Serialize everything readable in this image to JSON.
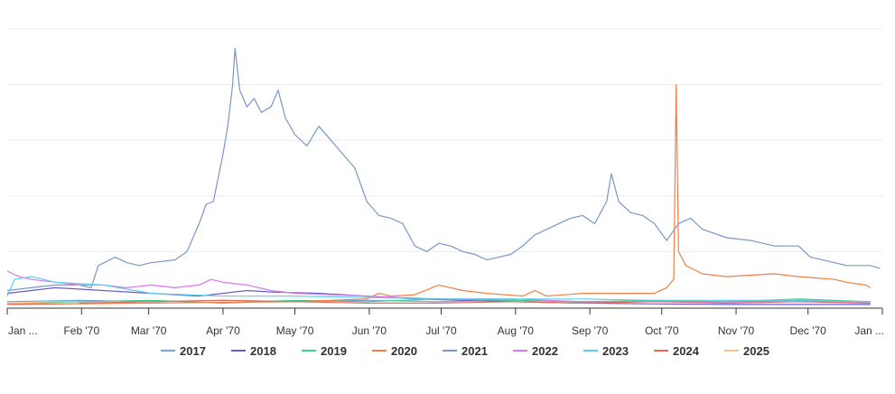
{
  "chart_data": {
    "type": "line",
    "title": "",
    "xlabel": "",
    "ylabel": "",
    "x_ticks": [
      "Jan ...",
      "Feb '70",
      "Mar '70",
      "Apr '70",
      "May '70",
      "Jun '70",
      "Jul '70",
      "Aug '70",
      "Sep '70",
      "Oct '70",
      "Nov '70",
      "Dec '70",
      "Jan ..."
    ],
    "x_tick_days": [
      0,
      31,
      59,
      90,
      120,
      151,
      181,
      212,
      243,
      273,
      304,
      334,
      365
    ],
    "xlim": [
      0,
      365
    ],
    "ylim": [
      0,
      100
    ],
    "grid_y": [
      0,
      20,
      40,
      60,
      80,
      100
    ],
    "legend_position": "bottom",
    "series": [
      {
        "name": "2017",
        "color": "#6fa8dc",
        "points": [
          [
            0,
            2
          ],
          [
            30,
            2.5
          ],
          [
            60,
            2
          ],
          [
            90,
            2.5
          ],
          [
            120,
            2
          ],
          [
            150,
            2.5
          ],
          [
            180,
            2
          ],
          [
            210,
            2.5
          ],
          [
            240,
            2
          ],
          [
            270,
            2
          ],
          [
            300,
            2
          ],
          [
            330,
            2.5
          ],
          [
            360,
            2
          ]
        ]
      },
      {
        "name": "2018",
        "color": "#6a5acd",
        "points": [
          [
            0,
            5
          ],
          [
            20,
            7
          ],
          [
            40,
            6
          ],
          [
            60,
            5
          ],
          [
            80,
            4
          ],
          [
            100,
            6
          ],
          [
            110,
            5.5
          ],
          [
            130,
            5
          ],
          [
            150,
            4
          ],
          [
            170,
            3
          ],
          [
            190,
            2.5
          ],
          [
            210,
            2
          ],
          [
            240,
            1.5
          ],
          [
            270,
            1.2
          ],
          [
            300,
            1
          ],
          [
            330,
            1
          ],
          [
            360,
            1
          ]
        ]
      },
      {
        "name": "2019",
        "color": "#3ecf8e",
        "points": [
          [
            0,
            1.5
          ],
          [
            30,
            2
          ],
          [
            60,
            2.5
          ],
          [
            90,
            1.5
          ],
          [
            120,
            2.5
          ],
          [
            150,
            2
          ],
          [
            180,
            3
          ],
          [
            210,
            2.5
          ],
          [
            240,
            2
          ],
          [
            270,
            2.5
          ],
          [
            300,
            2
          ],
          [
            330,
            3
          ],
          [
            360,
            2
          ]
        ]
      },
      {
        "name": "2020",
        "color": "#f07f46",
        "points": [
          [
            0,
            1
          ],
          [
            60,
            1.5
          ],
          [
            120,
            2
          ],
          [
            150,
            3
          ],
          [
            155,
            5
          ],
          [
            160,
            4
          ],
          [
            170,
            4.5
          ],
          [
            180,
            8
          ],
          [
            185,
            7
          ],
          [
            190,
            6
          ],
          [
            200,
            5
          ],
          [
            215,
            4
          ],
          [
            220,
            6
          ],
          [
            225,
            4
          ],
          [
            240,
            5
          ],
          [
            260,
            5
          ],
          [
            270,
            5
          ],
          [
            275,
            7
          ],
          [
            278,
            10
          ],
          [
            279,
            80
          ],
          [
            280,
            20
          ],
          [
            283,
            15
          ],
          [
            290,
            12
          ],
          [
            300,
            11
          ],
          [
            320,
            12
          ],
          [
            330,
            11
          ],
          [
            345,
            10
          ],
          [
            350,
            9
          ],
          [
            358,
            8
          ],
          [
            360,
            7
          ]
        ]
      },
      {
        "name": "2021",
        "color": "#7b97c6",
        "points": [
          [
            0,
            6
          ],
          [
            10,
            7
          ],
          [
            20,
            8
          ],
          [
            30,
            8
          ],
          [
            35,
            7
          ],
          [
            38,
            15
          ],
          [
            45,
            18
          ],
          [
            50,
            16
          ],
          [
            55,
            15
          ],
          [
            60,
            16
          ],
          [
            70,
            17
          ],
          [
            75,
            20
          ],
          [
            80,
            30
          ],
          [
            83,
            37
          ],
          [
            86,
            38
          ],
          [
            90,
            55
          ],
          [
            92,
            65
          ],
          [
            94,
            80
          ],
          [
            95,
            93
          ],
          [
            97,
            78
          ],
          [
            100,
            72
          ],
          [
            103,
            75
          ],
          [
            106,
            70
          ],
          [
            110,
            72
          ],
          [
            113,
            78
          ],
          [
            116,
            68
          ],
          [
            120,
            62
          ],
          [
            125,
            58
          ],
          [
            130,
            65
          ],
          [
            135,
            60
          ],
          [
            140,
            55
          ],
          [
            145,
            50
          ],
          [
            150,
            38
          ],
          [
            155,
            33
          ],
          [
            160,
            32
          ],
          [
            165,
            30
          ],
          [
            170,
            22
          ],
          [
            175,
            20
          ],
          [
            180,
            23
          ],
          [
            185,
            22
          ],
          [
            190,
            20
          ],
          [
            195,
            19
          ],
          [
            200,
            17
          ],
          [
            205,
            18
          ],
          [
            210,
            19
          ],
          [
            215,
            22
          ],
          [
            220,
            26
          ],
          [
            225,
            28
          ],
          [
            230,
            30
          ],
          [
            235,
            32
          ],
          [
            240,
            33
          ],
          [
            245,
            30
          ],
          [
            250,
            38
          ],
          [
            252,
            48
          ],
          [
            255,
            38
          ],
          [
            260,
            34
          ],
          [
            265,
            33
          ],
          [
            270,
            30
          ],
          [
            275,
            24
          ],
          [
            280,
            30
          ],
          [
            285,
            32
          ],
          [
            290,
            28
          ],
          [
            300,
            25
          ],
          [
            310,
            24
          ],
          [
            320,
            22
          ],
          [
            330,
            22
          ],
          [
            335,
            18
          ],
          [
            340,
            17
          ],
          [
            350,
            15
          ],
          [
            355,
            15
          ],
          [
            360,
            15
          ],
          [
            364,
            14
          ]
        ]
      },
      {
        "name": "2022",
        "color": "#d77be8",
        "points": [
          [
            0,
            13
          ],
          [
            5,
            11
          ],
          [
            10,
            10
          ],
          [
            20,
            9
          ],
          [
            30,
            8
          ],
          [
            40,
            8
          ],
          [
            50,
            7
          ],
          [
            60,
            8
          ],
          [
            70,
            7
          ],
          [
            80,
            8
          ],
          [
            85,
            10
          ],
          [
            90,
            9
          ],
          [
            100,
            8
          ],
          [
            110,
            6
          ],
          [
            120,
            5
          ],
          [
            150,
            4
          ],
          [
            180,
            3
          ],
          [
            210,
            3
          ],
          [
            240,
            2
          ],
          [
            270,
            2
          ],
          [
            300,
            2
          ],
          [
            330,
            2
          ],
          [
            360,
            2
          ]
        ]
      },
      {
        "name": "2023",
        "color": "#5ccfe6",
        "points": [
          [
            0,
            4
          ],
          [
            3,
            10
          ],
          [
            10,
            11
          ],
          [
            20,
            9
          ],
          [
            40,
            8
          ],
          [
            60,
            5
          ],
          [
            90,
            4
          ],
          [
            120,
            4
          ],
          [
            150,
            3.5
          ],
          [
            180,
            3
          ],
          [
            210,
            3
          ],
          [
            240,
            3
          ],
          [
            270,
            2.5
          ],
          [
            300,
            2.5
          ],
          [
            330,
            2.5
          ],
          [
            360,
            2
          ]
        ]
      },
      {
        "name": "2024",
        "color": "#e06a5b",
        "points": [
          [
            0,
            1
          ],
          [
            30,
            1.5
          ],
          [
            60,
            2
          ],
          [
            90,
            2.5
          ],
          [
            120,
            2
          ],
          [
            150,
            1.5
          ],
          [
            180,
            1.5
          ],
          [
            210,
            2
          ],
          [
            240,
            1.5
          ],
          [
            270,
            2
          ],
          [
            300,
            1.5
          ],
          [
            330,
            2
          ],
          [
            360,
            1.5
          ]
        ]
      },
      {
        "name": "2025",
        "color": "#f4c48a",
        "points": [
          [
            0,
            1.5
          ],
          [
            10,
            1.8
          ],
          [
            20,
            1.5
          ],
          [
            30,
            1.4
          ]
        ]
      }
    ]
  }
}
